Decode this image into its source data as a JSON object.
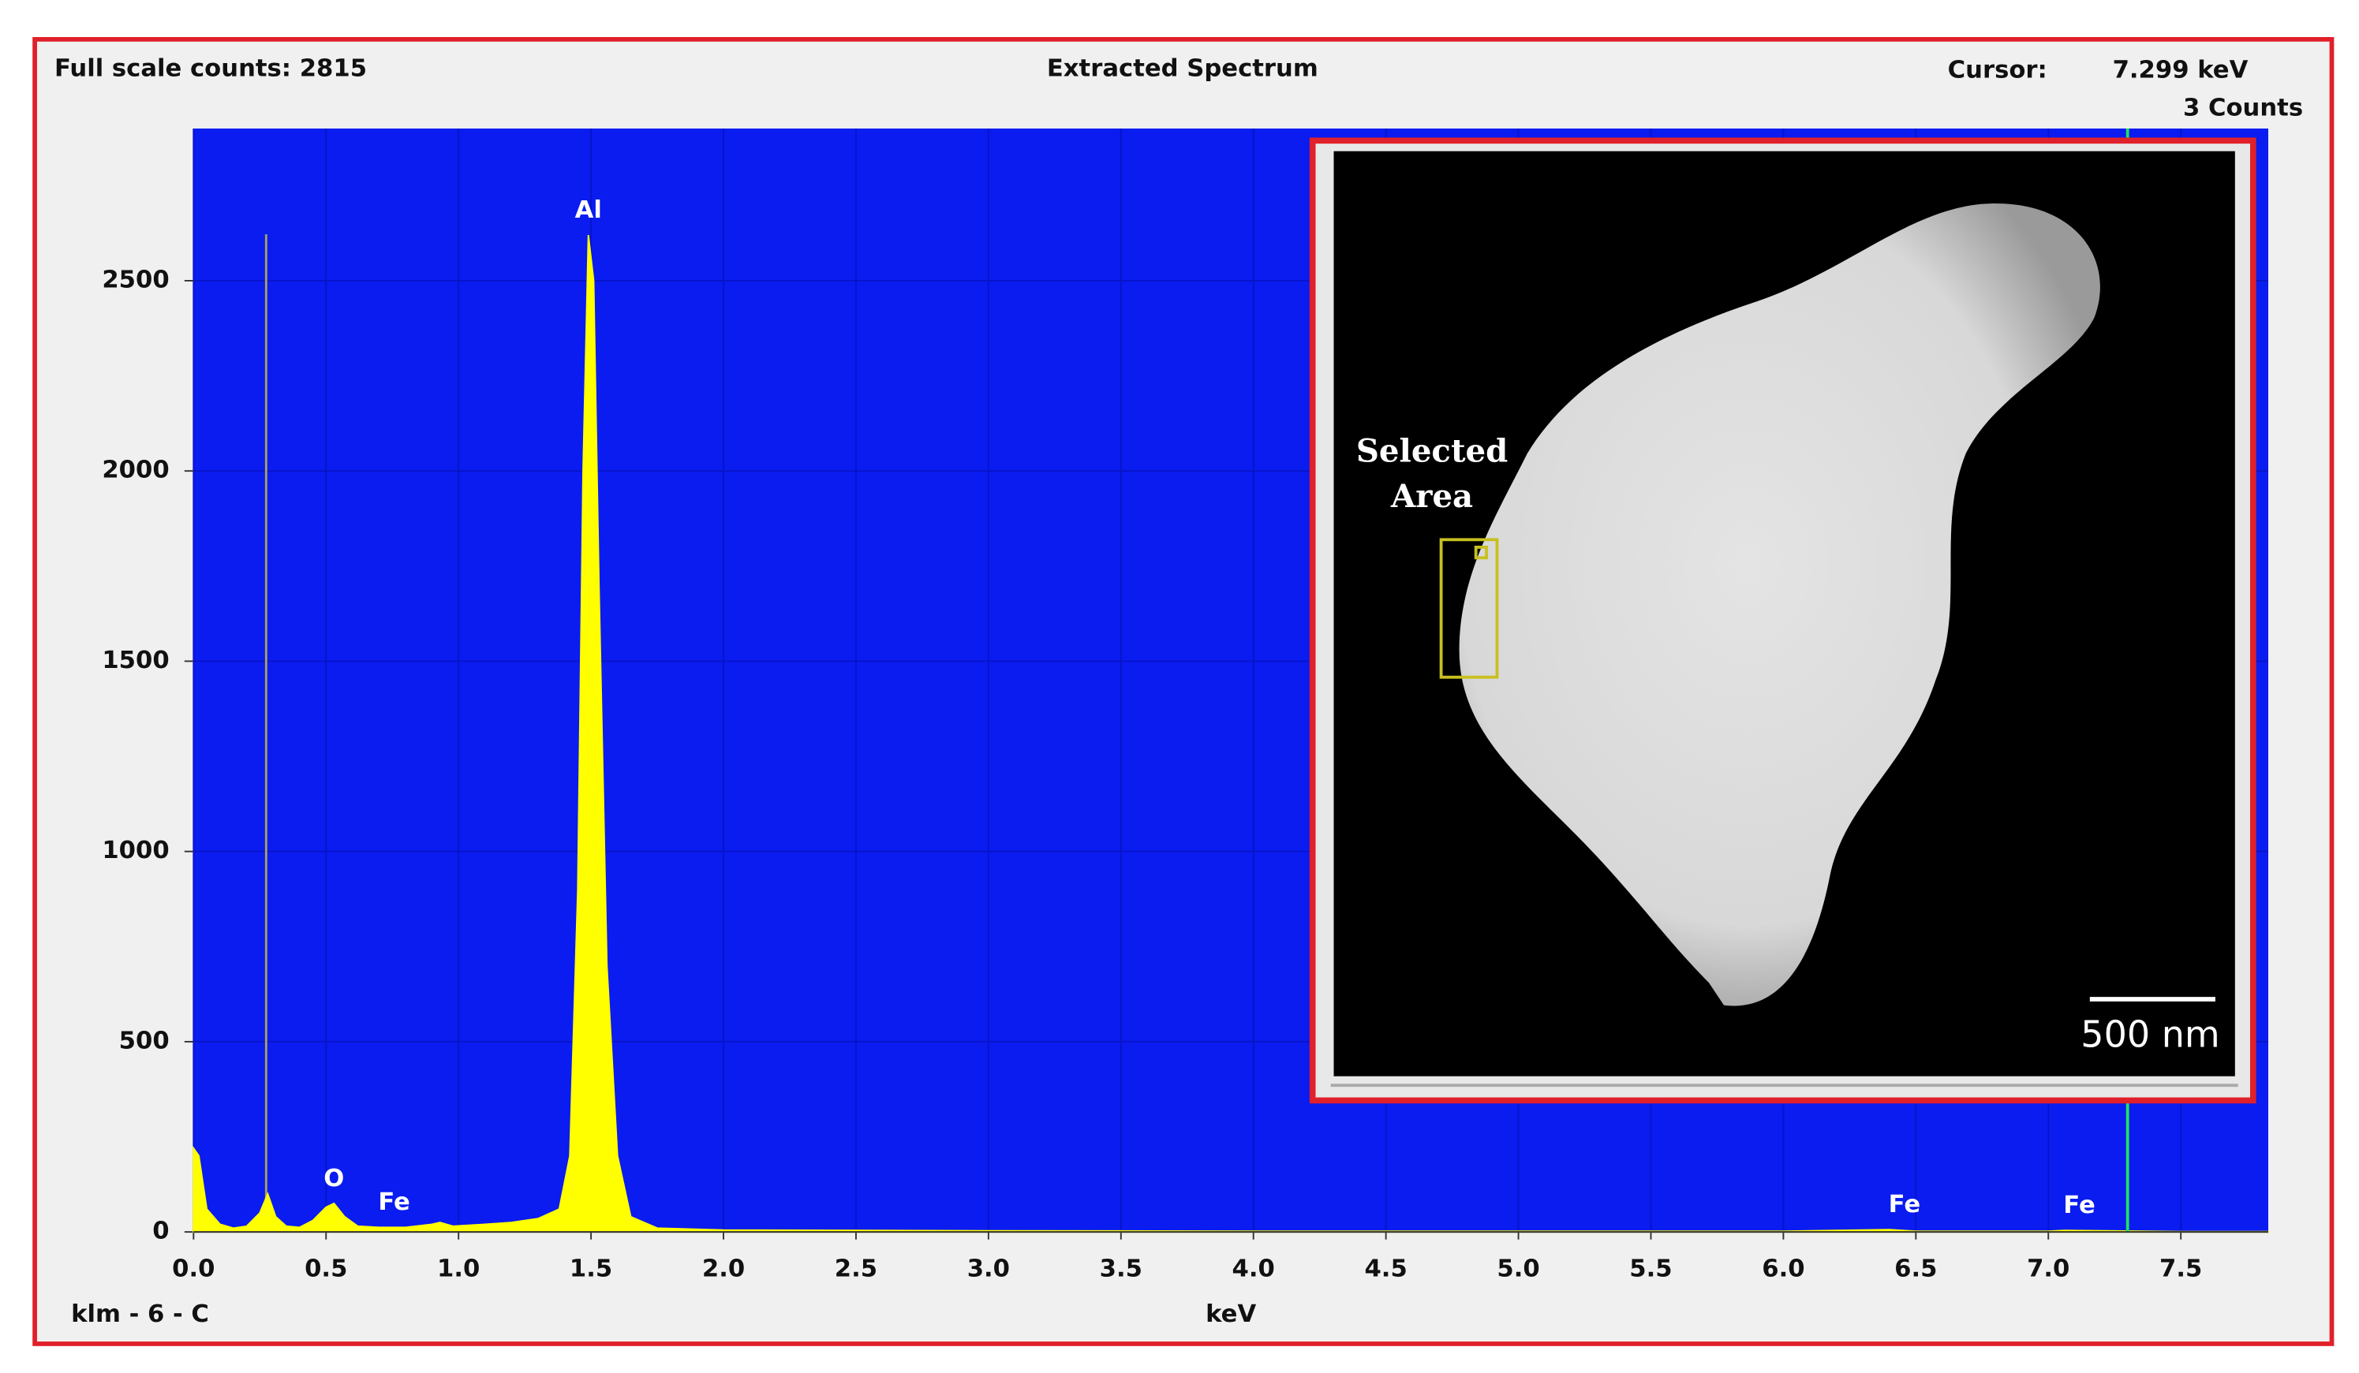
{
  "chart_data": {
    "type": "area",
    "title": "Extracted Spectrum",
    "full_scale": "Full scale counts: 2815",
    "cursor_label": "Cursor:",
    "cursor": {
      "value": 7.299,
      "label": "7.299 keV"
    },
    "cursor_counts": "3 Counts",
    "xlabel": "keV",
    "sample": "klm - 6 - C",
    "color": "#ffff00",
    "background": "#0a1cf0",
    "grid": true,
    "x": [
      0.0,
      0.02,
      0.05,
      0.1,
      0.15,
      0.2,
      0.25,
      0.28,
      0.31,
      0.35,
      0.4,
      0.45,
      0.5,
      0.53,
      0.57,
      0.62,
      0.7,
      0.8,
      0.9,
      0.93,
      0.98,
      1.1,
      1.2,
      1.3,
      1.38,
      1.42,
      1.45,
      1.47,
      1.49,
      1.51,
      1.53,
      1.56,
      1.6,
      1.65,
      1.75,
      2.0,
      3.0,
      4.0,
      5.0,
      6.0,
      6.4,
      6.5,
      7.0,
      7.06,
      7.5,
      7.83
    ],
    "values": [
      220,
      200,
      60,
      20,
      10,
      15,
      50,
      100,
      40,
      15,
      12,
      30,
      65,
      75,
      40,
      15,
      12,
      12,
      20,
      25,
      15,
      20,
      25,
      35,
      60,
      200,
      900,
      2000,
      2620,
      2500,
      1700,
      700,
      200,
      40,
      10,
      5,
      3,
      2,
      2,
      2,
      6,
      2,
      2,
      4,
      1,
      1
    ],
    "xlim": [
      0,
      7.83
    ],
    "ylim": [
      0,
      2900
    ],
    "xticks": [
      {
        "value": 0,
        "label": "0.0"
      },
      0.5,
      {
        "value": 1,
        "label": "1.0"
      },
      1.5,
      {
        "value": 2,
        "label": "2.0"
      },
      2.5,
      {
        "value": 3,
        "label": "3.0"
      },
      3.5,
      {
        "value": 4,
        "label": "4.0"
      },
      4.5,
      {
        "value": 5,
        "label": "5.0"
      },
      5.5,
      {
        "value": 6,
        "label": "6.0"
      },
      6.5,
      {
        "value": 7,
        "label": "7.0"
      },
      7.5
    ],
    "yticks": [
      0,
      500,
      1000,
      1500,
      2000,
      2500
    ],
    "annotations": [
      {
        "text": "Al",
        "x": 1.49
      },
      {
        "text": "O",
        "x": 0.53
      },
      {
        "text": "Fe",
        "x": 0.7
      },
      {
        "text": "Fe",
        "x": 6.4
      },
      {
        "text": "Fe",
        "x": 7.06
      }
    ],
    "inset": {
      "label_lines": [
        "Selected",
        "Area"
      ],
      "scale_bar": "500 nm"
    }
  }
}
